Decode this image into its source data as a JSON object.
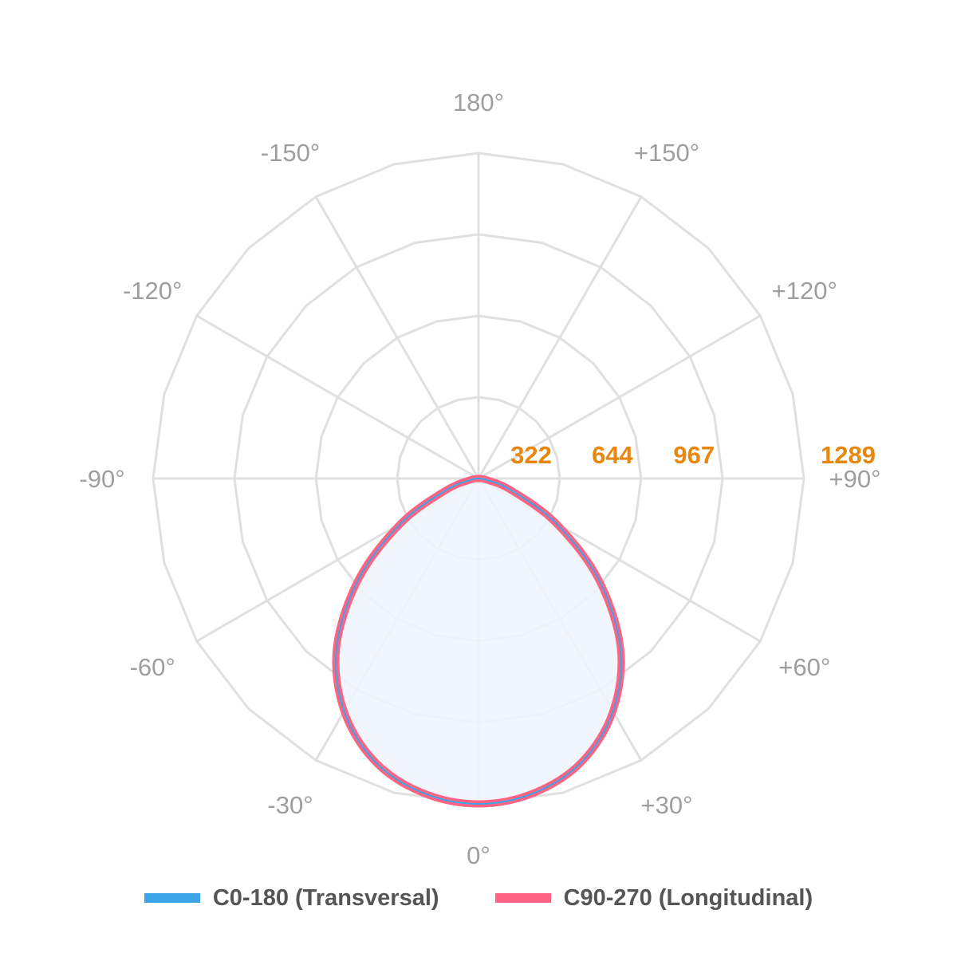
{
  "chart_data": {
    "type": "polar",
    "angle_labels": [
      "180°",
      "+150°",
      "+120°",
      "+90°",
      "+60°",
      "+30°",
      "0°",
      "-30°",
      "-60°",
      "-90°",
      "-120°",
      "-150°"
    ],
    "radial_ticks": [
      322,
      644,
      967,
      1289
    ],
    "radial_tick_labels": [
      "322",
      "644",
      "967",
      "1289"
    ],
    "rmax": 1289,
    "grid": true,
    "series": [
      {
        "name": "C0-180 (Transversal)",
        "color": "#3ba5e8",
        "angles": [
          0,
          10,
          20,
          30,
          40,
          50,
          60,
          70,
          80,
          90
        ],
        "values": [
          1289,
          1265,
          1195,
          1065,
          875,
          620,
          355,
          140,
          35,
          0
        ]
      },
      {
        "name": "C90-270 (Longitudinal)",
        "color": "#ff6384",
        "angles": [
          0,
          10,
          20,
          30,
          40,
          50,
          60,
          70,
          80,
          90
        ],
        "values": [
          1289,
          1265,
          1195,
          1065,
          875,
          620,
          355,
          140,
          35,
          0
        ]
      }
    ],
    "fill_color": "#eef5fc",
    "legend_position": "bottom"
  }
}
